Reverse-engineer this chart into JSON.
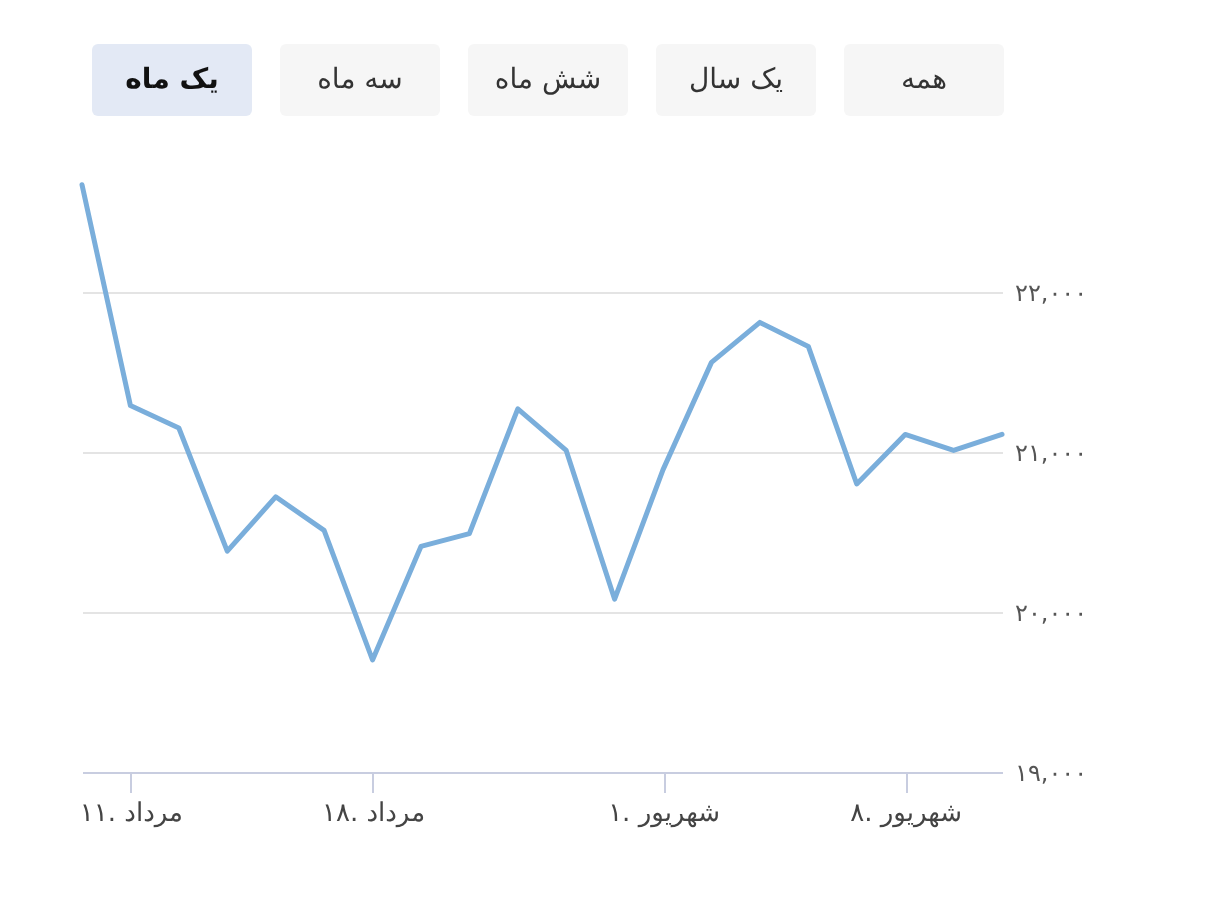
{
  "chart_data": {
    "type": "line",
    "annotations": [
      "یک ماه",
      "سه ماه",
      "شش ماه",
      "یک سال",
      "همه"
    ],
    "categories": [
      null,
      "۱۱. مرداد",
      null,
      null,
      null,
      null,
      "۱۸. مرداد",
      null,
      null,
      null,
      null,
      null,
      "۱. شهریور",
      null,
      null,
      null,
      null,
      "۸. شهریور",
      null,
      null
    ],
    "series": [
      {
        "color": "#7aaedb",
        "values": [
          22670,
          21290,
          21150,
          20380,
          20720,
          20510,
          19700,
          20410,
          20490,
          21270,
          21010,
          20080,
          20890,
          21560,
          21810,
          21660,
          20800,
          21110,
          21010,
          21110
        ]
      }
    ],
    "ylim": [
      19000,
      23000
    ],
    "yticks": [
      {
        "value": 19000,
        "label": "۱۹,۰۰۰"
      },
      {
        "value": 20000,
        "label": "۲۰,۰۰۰"
      },
      {
        "value": 21000,
        "label": "۲۱,۰۰۰"
      },
      {
        "value": 22000,
        "label": "۲۲,۰۰۰"
      }
    ],
    "grid": "y",
    "marker": "none",
    "line_style": "solid"
  }
}
